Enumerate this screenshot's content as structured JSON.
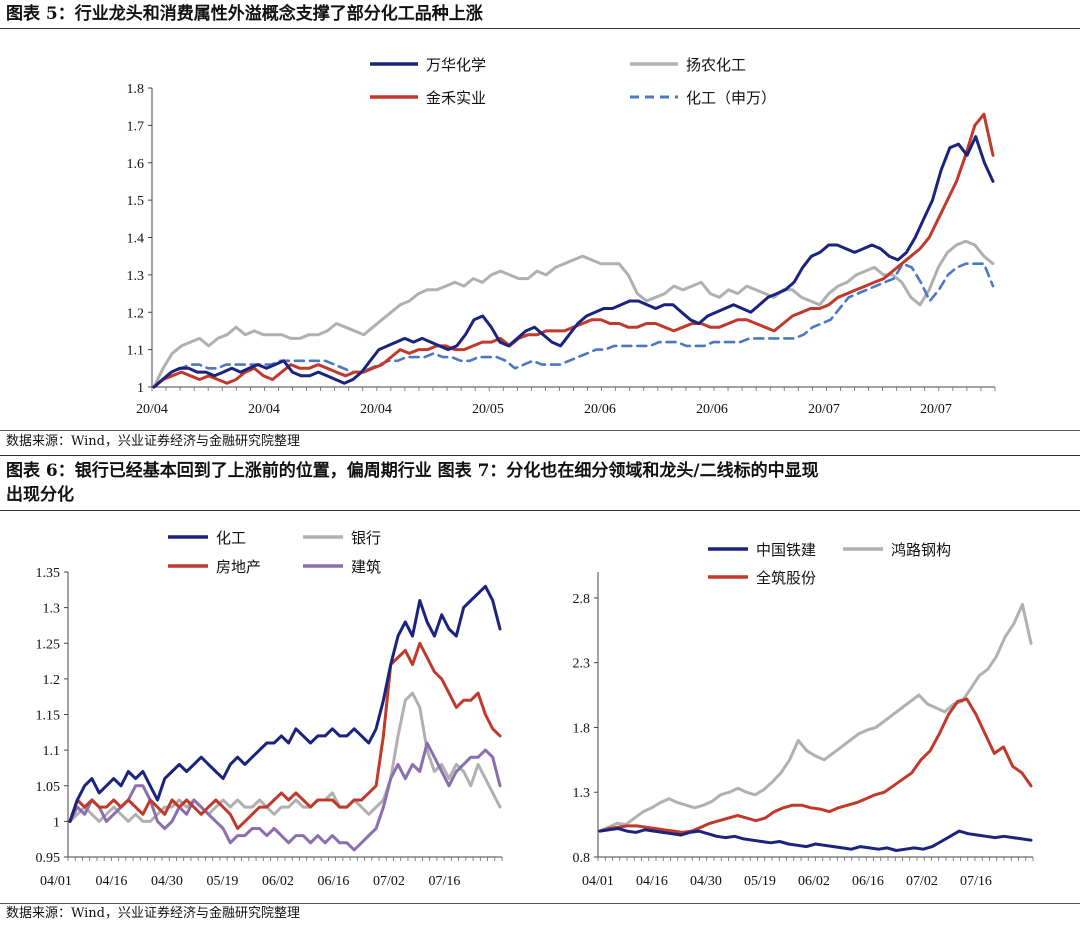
{
  "fig5": {
    "title": "图表 5：行业龙头和消费属性外溢概念支撑了部分化工品种上涨",
    "source": "数据来源：Wind，兴业证券经济与金融研究院整理"
  },
  "fig67": {
    "title_line1": "图表 6：银行已经基本回到了上涨前的位置，偏周期行业 图表 7：分化也在细分领域和龙头/二线标的中显现",
    "title_line2": "出现分化",
    "source": "数据来源：Wind，兴业证券经济与金融研究院整理"
  },
  "colors": {
    "navy": "#1a237e",
    "red": "#c0392b",
    "gray": "#b0b0b0",
    "purple": "#8a6fb0",
    "blue_dash": "#4a78c4"
  },
  "chart_data": [
    {
      "id": "fig5",
      "type": "line",
      "title": "图表 5：行业龙头和消费属性外溢概念支撑了部分化工品种上涨",
      "ylim": [
        1.0,
        1.8
      ],
      "yticks": [
        "1",
        "1.1",
        "1.2",
        "1.3",
        "1.4",
        "1.5",
        "1.6",
        "1.7",
        "1.8"
      ],
      "ytick_values": [
        1.0,
        1.1,
        1.2,
        1.3,
        1.4,
        1.5,
        1.6,
        1.7,
        1.8
      ],
      "xticks": [
        "20/04",
        "20/04",
        "20/04",
        "20/05",
        "20/06",
        "20/06",
        "20/07",
        "20/07"
      ],
      "legend": [
        "万华化学",
        "扬农化工",
        "金禾实业",
        "化工（申万）"
      ],
      "series": [
        {
          "name": "扬农化工",
          "color": "gray",
          "dash": false,
          "values": [
            1.0,
            1.05,
            1.09,
            1.11,
            1.12,
            1.13,
            1.11,
            1.13,
            1.14,
            1.16,
            1.14,
            1.15,
            1.14,
            1.14,
            1.14,
            1.13,
            1.13,
            1.14,
            1.14,
            1.15,
            1.17,
            1.16,
            1.15,
            1.14,
            1.16,
            1.18,
            1.2,
            1.22,
            1.23,
            1.25,
            1.26,
            1.26,
            1.27,
            1.28,
            1.27,
            1.29,
            1.28,
            1.3,
            1.31,
            1.3,
            1.29,
            1.29,
            1.31,
            1.3,
            1.32,
            1.33,
            1.34,
            1.35,
            1.34,
            1.33,
            1.33,
            1.33,
            1.3,
            1.25,
            1.23,
            1.24,
            1.25,
            1.27,
            1.26,
            1.27,
            1.28,
            1.25,
            1.24,
            1.26,
            1.25,
            1.27,
            1.26,
            1.25,
            1.24,
            1.26,
            1.26,
            1.24,
            1.23,
            1.22,
            1.25,
            1.27,
            1.28,
            1.3,
            1.31,
            1.32,
            1.3,
            1.3,
            1.28,
            1.24,
            1.22,
            1.26,
            1.32,
            1.36,
            1.38,
            1.39,
            1.38,
            1.35,
            1.33
          ]
        },
        {
          "name": "化工（申万）",
          "color": "blue_dash",
          "dash": true,
          "values": [
            1.0,
            1.02,
            1.04,
            1.05,
            1.06,
            1.06,
            1.05,
            1.05,
            1.06,
            1.06,
            1.06,
            1.06,
            1.06,
            1.06,
            1.07,
            1.07,
            1.07,
            1.07,
            1.07,
            1.07,
            1.06,
            1.05,
            1.04,
            1.04,
            1.05,
            1.06,
            1.07,
            1.07,
            1.08,
            1.08,
            1.08,
            1.09,
            1.08,
            1.08,
            1.07,
            1.07,
            1.08,
            1.08,
            1.08,
            1.07,
            1.05,
            1.06,
            1.07,
            1.06,
            1.06,
            1.06,
            1.07,
            1.08,
            1.09,
            1.1,
            1.1,
            1.11,
            1.11,
            1.11,
            1.11,
            1.11,
            1.12,
            1.12,
            1.12,
            1.11,
            1.11,
            1.11,
            1.12,
            1.12,
            1.12,
            1.12,
            1.13,
            1.13,
            1.13,
            1.13,
            1.13,
            1.13,
            1.14,
            1.16,
            1.17,
            1.18,
            1.21,
            1.24,
            1.25,
            1.26,
            1.27,
            1.28,
            1.29,
            1.33,
            1.32,
            1.28,
            1.23,
            1.26,
            1.3,
            1.32,
            1.33,
            1.33,
            1.33,
            1.27
          ]
        },
        {
          "name": "金禾实业",
          "color": "red",
          "dash": false,
          "values": [
            1.0,
            1.02,
            1.03,
            1.04,
            1.03,
            1.02,
            1.03,
            1.02,
            1.01,
            1.02,
            1.04,
            1.05,
            1.03,
            1.02,
            1.04,
            1.06,
            1.05,
            1.05,
            1.06,
            1.05,
            1.04,
            1.03,
            1.04,
            1.04,
            1.05,
            1.06,
            1.08,
            1.1,
            1.09,
            1.1,
            1.1,
            1.11,
            1.11,
            1.1,
            1.1,
            1.11,
            1.12,
            1.12,
            1.13,
            1.11,
            1.13,
            1.14,
            1.14,
            1.15,
            1.15,
            1.15,
            1.16,
            1.17,
            1.18,
            1.18,
            1.17,
            1.17,
            1.16,
            1.16,
            1.17,
            1.17,
            1.16,
            1.15,
            1.16,
            1.17,
            1.17,
            1.16,
            1.16,
            1.17,
            1.18,
            1.18,
            1.17,
            1.16,
            1.15,
            1.17,
            1.19,
            1.2,
            1.21,
            1.21,
            1.22,
            1.24,
            1.25,
            1.26,
            1.27,
            1.28,
            1.29,
            1.31,
            1.33,
            1.35,
            1.37,
            1.4,
            1.45,
            1.5,
            1.55,
            1.62,
            1.7,
            1.73,
            1.62
          ]
        },
        {
          "name": "万华化学",
          "color": "navy",
          "dash": false,
          "values": [
            1.0,
            1.02,
            1.04,
            1.05,
            1.05,
            1.04,
            1.04,
            1.03,
            1.04,
            1.05,
            1.04,
            1.05,
            1.06,
            1.05,
            1.06,
            1.07,
            1.04,
            1.03,
            1.03,
            1.04,
            1.03,
            1.02,
            1.01,
            1.02,
            1.04,
            1.07,
            1.1,
            1.11,
            1.12,
            1.13,
            1.12,
            1.13,
            1.12,
            1.11,
            1.1,
            1.11,
            1.14,
            1.18,
            1.19,
            1.16,
            1.12,
            1.11,
            1.13,
            1.15,
            1.16,
            1.14,
            1.12,
            1.11,
            1.14,
            1.17,
            1.19,
            1.2,
            1.21,
            1.21,
            1.22,
            1.23,
            1.23,
            1.22,
            1.21,
            1.22,
            1.22,
            1.2,
            1.18,
            1.17,
            1.19,
            1.2,
            1.21,
            1.22,
            1.21,
            1.2,
            1.22,
            1.24,
            1.25,
            1.26,
            1.28,
            1.32,
            1.35,
            1.36,
            1.38,
            1.38,
            1.37,
            1.36,
            1.37,
            1.38,
            1.37,
            1.35,
            1.34,
            1.36,
            1.4,
            1.45,
            1.5,
            1.58,
            1.64,
            1.65,
            1.62,
            1.67,
            1.6,
            1.55
          ]
        }
      ]
    },
    {
      "id": "fig6",
      "type": "line",
      "title": "图表 6：银行已经基本回到了上涨前的位置，偏周期行业出现分化",
      "ylim": [
        0.95,
        1.35
      ],
      "yticks": [
        "0.95",
        "1",
        "1.05",
        "1.1",
        "1.15",
        "1.2",
        "1.25",
        "1.3",
        "1.35"
      ],
      "ytick_values": [
        0.95,
        1.0,
        1.05,
        1.1,
        1.15,
        1.2,
        1.25,
        1.3,
        1.35
      ],
      "xticks": [
        "04/01",
        "04/16",
        "04/30",
        "05/19",
        "06/02",
        "06/16",
        "07/02",
        "07/16"
      ],
      "legend": [
        "化工",
        "银行",
        "房地产",
        "建筑"
      ],
      "series": [
        {
          "name": "银行",
          "color": "gray",
          "dash": false,
          "values": [
            1.0,
            1.01,
            1.02,
            1.01,
            1.0,
            1.01,
            1.02,
            1.01,
            1.0,
            1.01,
            1.0,
            1.0,
            1.01,
            1.02,
            1.02,
            1.03,
            1.02,
            1.03,
            1.02,
            1.01,
            1.02,
            1.03,
            1.02,
            1.03,
            1.02,
            1.02,
            1.03,
            1.02,
            1.01,
            1.02,
            1.02,
            1.03,
            1.02,
            1.02,
            1.03,
            1.03,
            1.04,
            1.02,
            1.02,
            1.03,
            1.02,
            1.01,
            1.02,
            1.03,
            1.06,
            1.12,
            1.17,
            1.18,
            1.16,
            1.1,
            1.07,
            1.08,
            1.06,
            1.08,
            1.07,
            1.05,
            1.08,
            1.06,
            1.04,
            1.02
          ]
        },
        {
          "name": "建筑",
          "color": "purple",
          "dash": false,
          "values": [
            1.0,
            1.02,
            1.01,
            1.03,
            1.02,
            1.0,
            1.01,
            1.02,
            1.03,
            1.05,
            1.05,
            1.03,
            1.0,
            0.99,
            1.0,
            1.02,
            1.01,
            1.03,
            1.02,
            1.01,
            1.0,
            0.99,
            0.97,
            0.98,
            0.98,
            0.99,
            0.99,
            0.98,
            0.99,
            0.98,
            0.97,
            0.98,
            0.98,
            0.97,
            0.98,
            0.97,
            0.98,
            0.97,
            0.97,
            0.96,
            0.97,
            0.98,
            0.99,
            1.02,
            1.06,
            1.08,
            1.06,
            1.08,
            1.07,
            1.11,
            1.09,
            1.07,
            1.05,
            1.07,
            1.08,
            1.09,
            1.09,
            1.1,
            1.09,
            1.05
          ]
        },
        {
          "name": "房地产",
          "color": "red",
          "dash": false,
          "values": [
            1.0,
            1.03,
            1.02,
            1.03,
            1.02,
            1.02,
            1.03,
            1.02,
            1.03,
            1.02,
            1.01,
            1.03,
            1.02,
            1.01,
            1.03,
            1.02,
            1.03,
            1.02,
            1.01,
            1.02,
            1.03,
            1.02,
            1.01,
            0.99,
            1.0,
            1.01,
            1.02,
            1.02,
            1.03,
            1.04,
            1.03,
            1.04,
            1.03,
            1.02,
            1.03,
            1.03,
            1.03,
            1.02,
            1.02,
            1.03,
            1.03,
            1.04,
            1.05,
            1.12,
            1.22,
            1.23,
            1.24,
            1.22,
            1.25,
            1.23,
            1.21,
            1.2,
            1.18,
            1.16,
            1.17,
            1.17,
            1.18,
            1.15,
            1.13,
            1.12
          ]
        },
        {
          "name": "化工",
          "color": "navy",
          "dash": false,
          "values": [
            1.0,
            1.03,
            1.05,
            1.06,
            1.04,
            1.05,
            1.06,
            1.05,
            1.07,
            1.06,
            1.07,
            1.05,
            1.03,
            1.06,
            1.07,
            1.08,
            1.07,
            1.08,
            1.09,
            1.08,
            1.07,
            1.06,
            1.08,
            1.09,
            1.08,
            1.09,
            1.1,
            1.11,
            1.11,
            1.12,
            1.11,
            1.13,
            1.12,
            1.11,
            1.12,
            1.12,
            1.13,
            1.12,
            1.12,
            1.13,
            1.12,
            1.11,
            1.13,
            1.17,
            1.22,
            1.26,
            1.28,
            1.26,
            1.31,
            1.28,
            1.26,
            1.29,
            1.27,
            1.26,
            1.3,
            1.31,
            1.32,
            1.33,
            1.31,
            1.27
          ]
        }
      ]
    },
    {
      "id": "fig7",
      "type": "line",
      "title": "图表 7：分化也在细分领域和龙头/二线标的中显现",
      "ylim": [
        0.8,
        3.0
      ],
      "yticks": [
        "0.8",
        "1.3",
        "1.8",
        "2.3",
        "2.8"
      ],
      "ytick_values": [
        0.8,
        1.3,
        1.8,
        2.3,
        2.8
      ],
      "xticks": [
        "04/01",
        "04/16",
        "04/30",
        "05/19",
        "06/02",
        "06/16",
        "07/02",
        "07/16"
      ],
      "legend": [
        "中国铁建",
        "鸿路钢构",
        "全筑股份"
      ],
      "series": [
        {
          "name": "鸿路钢构",
          "color": "gray",
          "dash": false,
          "values": [
            1.0,
            1.03,
            1.06,
            1.05,
            1.1,
            1.15,
            1.18,
            1.22,
            1.25,
            1.22,
            1.2,
            1.18,
            1.2,
            1.23,
            1.28,
            1.3,
            1.33,
            1.3,
            1.28,
            1.32,
            1.38,
            1.45,
            1.55,
            1.7,
            1.62,
            1.58,
            1.55,
            1.6,
            1.65,
            1.7,
            1.75,
            1.78,
            1.8,
            1.85,
            1.9,
            1.95,
            2.0,
            2.05,
            1.98,
            1.95,
            1.92,
            1.98,
            2.0,
            2.1,
            2.2,
            2.25,
            2.35,
            2.5,
            2.6,
            2.75,
            2.45
          ]
        },
        {
          "name": "全筑股份",
          "color": "red",
          "dash": false,
          "values": [
            1.0,
            1.02,
            1.03,
            1.04,
            1.04,
            1.03,
            1.02,
            1.01,
            1.0,
            0.99,
            1.0,
            1.03,
            1.06,
            1.08,
            1.1,
            1.12,
            1.1,
            1.08,
            1.1,
            1.15,
            1.18,
            1.2,
            1.2,
            1.18,
            1.17,
            1.15,
            1.18,
            1.2,
            1.22,
            1.25,
            1.28,
            1.3,
            1.35,
            1.4,
            1.45,
            1.55,
            1.62,
            1.75,
            1.9,
            2.0,
            2.02,
            1.9,
            1.75,
            1.6,
            1.65,
            1.5,
            1.45,
            1.35
          ]
        },
        {
          "name": "中国铁建",
          "color": "navy",
          "dash": false,
          "values": [
            1.0,
            1.01,
            1.02,
            1.0,
            0.99,
            1.01,
            1.0,
            0.99,
            0.98,
            0.97,
            0.99,
            1.0,
            0.98,
            0.96,
            0.95,
            0.96,
            0.94,
            0.93,
            0.92,
            0.91,
            0.92,
            0.9,
            0.89,
            0.88,
            0.9,
            0.89,
            0.88,
            0.87,
            0.86,
            0.88,
            0.87,
            0.86,
            0.87,
            0.85,
            0.86,
            0.87,
            0.86,
            0.88,
            0.92,
            0.96,
            1.0,
            0.98,
            0.97,
            0.96,
            0.95,
            0.96,
            0.95,
            0.94,
            0.93
          ]
        }
      ]
    }
  ]
}
